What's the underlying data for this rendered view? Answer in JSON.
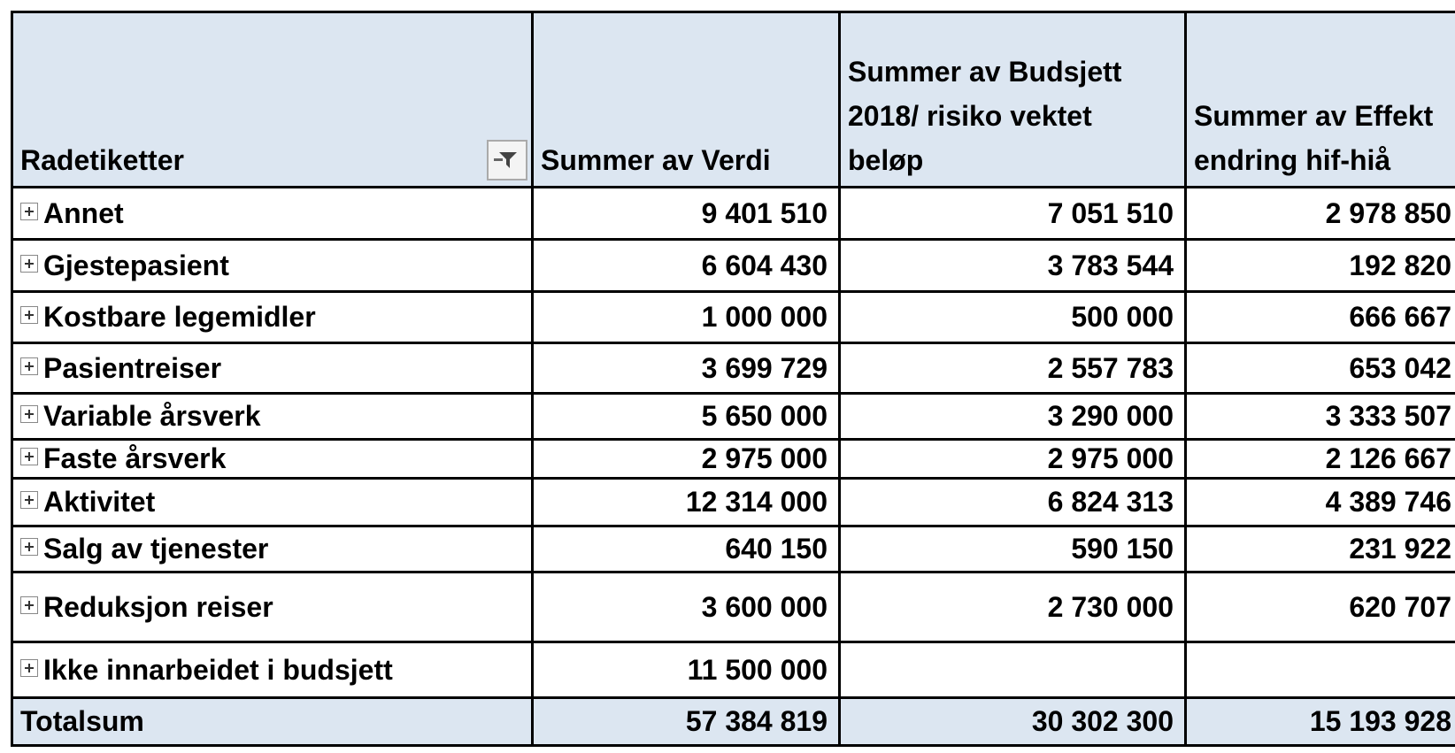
{
  "table": {
    "header": [
      "Radetiketter",
      "Summer av Verdi",
      "Summer av Budsjett 2018/ risiko vektet beløp",
      "Summer av Effekt endring hif-hiå"
    ],
    "rows": [
      {
        "label": "Annet",
        "values": [
          "9 401 510",
          "7 051 510",
          "2 978 850"
        ]
      },
      {
        "label": "Gjestepasient",
        "values": [
          "6 604 430",
          "3 783 544",
          "192 820"
        ]
      },
      {
        "label": "Kostbare legemidler",
        "values": [
          "1 000 000",
          "500 000",
          "666 667"
        ]
      },
      {
        "label": "Pasientreiser",
        "values": [
          "3 699 729",
          "2 557 783",
          "653 042"
        ]
      },
      {
        "label": "Variable årsverk",
        "values": [
          "5 650 000",
          "3 290 000",
          "3 333 507"
        ]
      },
      {
        "label": "Faste årsverk",
        "values": [
          "2 975 000",
          "2 975 000",
          "2 126 667"
        ]
      },
      {
        "label": "Aktivitet",
        "values": [
          "12 314 000",
          "6 824 313",
          "4 389 746"
        ]
      },
      {
        "label": "Salg av tjenester",
        "values": [
          "640 150",
          "590 150",
          "231 922"
        ]
      },
      {
        "label": "Reduksjon reiser",
        "values": [
          "3 600 000",
          "2 730 000",
          "620 707"
        ]
      },
      {
        "label": "Ikke innarbeidet i budsjett",
        "values": [
          "11 500 000"
        ]
      }
    ],
    "total": {
      "label": "Totalsum",
      "values": [
        "57 384 819",
        "30 302 300",
        "15 193 928"
      ]
    }
  }
}
